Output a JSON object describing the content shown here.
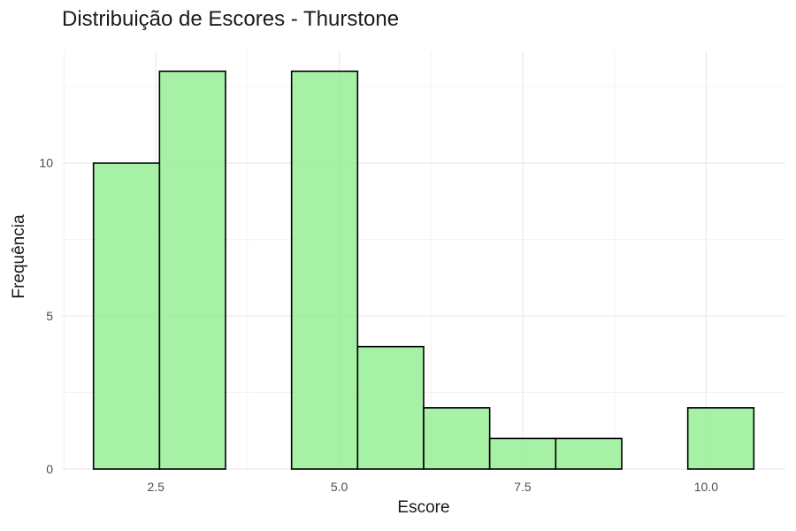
{
  "chart_data": {
    "type": "bar",
    "title": "Distribuição de Escores - Thurstone",
    "xlabel": "Escore",
    "ylabel": "Frequência",
    "bins": [
      {
        "x0": 1.65,
        "x1": 2.55,
        "count": 10
      },
      {
        "x0": 2.55,
        "x1": 3.45,
        "count": 13
      },
      {
        "x0": 3.45,
        "x1": 4.35,
        "count": 0
      },
      {
        "x0": 4.35,
        "x1": 5.25,
        "count": 13
      },
      {
        "x0": 5.25,
        "x1": 6.15,
        "count": 4
      },
      {
        "x0": 6.15,
        "x1": 7.05,
        "count": 2
      },
      {
        "x0": 7.05,
        "x1": 7.95,
        "count": 1
      },
      {
        "x0": 7.95,
        "x1": 8.85,
        "count": 1
      },
      {
        "x0": 8.85,
        "x1": 9.75,
        "count": 0
      },
      {
        "x0": 9.75,
        "x1": 10.65,
        "count": 2
      }
    ],
    "x_ticks": [
      {
        "value": 2.5,
        "label": "2.5"
      },
      {
        "value": 5.0,
        "label": "5.0"
      },
      {
        "value": 7.5,
        "label": "7.5"
      },
      {
        "value": 10.0,
        "label": "10.0"
      }
    ],
    "y_ticks": [
      {
        "value": 0,
        "label": "0"
      },
      {
        "value": 5,
        "label": "5"
      },
      {
        "value": 10,
        "label": "10"
      }
    ],
    "xlim": [
      1.22,
      11.08
    ],
    "ylim": [
      0,
      13.65
    ],
    "grid": true,
    "bar_fill": "#90ee90",
    "bar_stroke": "#000000",
    "grid_major_color": "#ebebeb",
    "grid_minor_color": "#f3f3f3"
  }
}
